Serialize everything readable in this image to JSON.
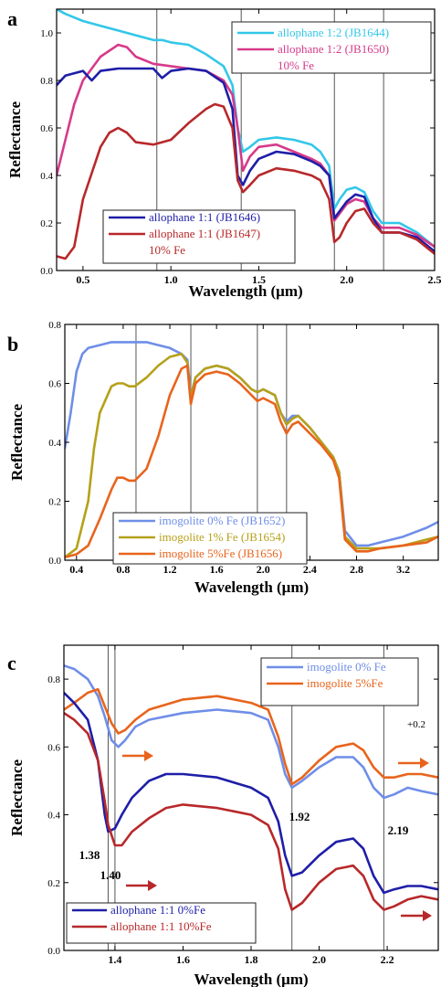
{
  "chart_data": [
    {
      "type": "line",
      "panel_label": "a",
      "xlabel": "Wavelength (μm)",
      "ylabel": "Reflectance",
      "xlim": [
        0.35,
        2.5
      ],
      "ylim": [
        0.0,
        1.1
      ],
      "xticks": [
        "0.5",
        "1.0",
        "1.5",
        "2.0",
        "2.5"
      ],
      "yticks": [
        "0.0",
        "0.2",
        "0.4",
        "0.6",
        "0.8",
        "1.0"
      ],
      "vlines": [
        0.92,
        1.4,
        1.93,
        2.21
      ],
      "grid": false,
      "legends": [
        {
          "placement": "top-right",
          "entries": [
            {
              "text": "allophane 1:2 (JB1644)",
              "color": "#33c7e8"
            },
            {
              "text": "allophane 1:2 (JB1650)",
              "color": "#d63a8a"
            },
            {
              "text": "10% Fe",
              "color": "#d63a8a"
            }
          ]
        },
        {
          "placement": "bottom-center",
          "entries": [
            {
              "text": "allophane 1:1 (JB1646)",
              "color": "#1e1ea8"
            },
            {
              "text": "allophane 1:1 (JB1647)",
              "color": "#b8282a"
            },
            {
              "text": "10% Fe",
              "color": "#b8282a"
            }
          ]
        }
      ],
      "series": [
        {
          "color": "#33c7e8",
          "x": [
            0.35,
            0.4,
            0.5,
            0.6,
            0.7,
            0.8,
            0.9,
            0.95,
            1.0,
            1.1,
            1.2,
            1.3,
            1.35,
            1.38,
            1.41,
            1.45,
            1.5,
            1.6,
            1.7,
            1.8,
            1.85,
            1.9,
            1.93,
            1.96,
            2.0,
            2.05,
            2.1,
            2.15,
            2.2,
            2.3,
            2.4,
            2.5
          ],
          "y": [
            1.1,
            1.08,
            1.05,
            1.03,
            1.01,
            0.99,
            0.97,
            0.97,
            0.96,
            0.95,
            0.91,
            0.86,
            0.78,
            0.6,
            0.5,
            0.52,
            0.55,
            0.56,
            0.55,
            0.53,
            0.5,
            0.44,
            0.26,
            0.3,
            0.34,
            0.35,
            0.33,
            0.25,
            0.2,
            0.2,
            0.16,
            0.1
          ]
        },
        {
          "color": "#d63a8a",
          "x": [
            0.35,
            0.4,
            0.45,
            0.5,
            0.6,
            0.7,
            0.75,
            0.8,
            0.9,
            1.0,
            1.1,
            1.2,
            1.3,
            1.35,
            1.38,
            1.41,
            1.45,
            1.5,
            1.6,
            1.7,
            1.8,
            1.85,
            1.9,
            1.93,
            1.96,
            2.0,
            2.05,
            2.1,
            2.15,
            2.2,
            2.3,
            2.4,
            2.5
          ],
          "y": [
            0.4,
            0.55,
            0.7,
            0.8,
            0.9,
            0.95,
            0.94,
            0.9,
            0.87,
            0.86,
            0.85,
            0.84,
            0.8,
            0.74,
            0.6,
            0.42,
            0.48,
            0.52,
            0.53,
            0.5,
            0.47,
            0.45,
            0.4,
            0.21,
            0.24,
            0.28,
            0.3,
            0.29,
            0.22,
            0.18,
            0.18,
            0.15,
            0.1
          ]
        },
        {
          "color": "#1e1ea8",
          "x": [
            0.35,
            0.4,
            0.5,
            0.55,
            0.6,
            0.7,
            0.8,
            0.9,
            0.95,
            1.0,
            1.1,
            1.2,
            1.3,
            1.35,
            1.38,
            1.41,
            1.45,
            1.5,
            1.6,
            1.7,
            1.8,
            1.85,
            1.9,
            1.93,
            1.96,
            2.0,
            2.05,
            2.1,
            2.15,
            2.2,
            2.3,
            2.4,
            2.5
          ],
          "y": [
            0.78,
            0.82,
            0.84,
            0.8,
            0.84,
            0.85,
            0.85,
            0.85,
            0.81,
            0.84,
            0.85,
            0.84,
            0.79,
            0.68,
            0.4,
            0.36,
            0.42,
            0.47,
            0.5,
            0.49,
            0.46,
            0.44,
            0.4,
            0.22,
            0.25,
            0.29,
            0.32,
            0.31,
            0.22,
            0.16,
            0.16,
            0.14,
            0.08
          ]
        },
        {
          "color": "#b8282a",
          "x": [
            0.35,
            0.4,
            0.45,
            0.5,
            0.6,
            0.65,
            0.7,
            0.75,
            0.8,
            0.9,
            1.0,
            1.1,
            1.2,
            1.25,
            1.3,
            1.35,
            1.38,
            1.41,
            1.45,
            1.5,
            1.6,
            1.7,
            1.8,
            1.85,
            1.9,
            1.93,
            1.96,
            2.0,
            2.05,
            2.1,
            2.15,
            2.2,
            2.3,
            2.4,
            2.5
          ],
          "y": [
            0.06,
            0.05,
            0.1,
            0.3,
            0.52,
            0.58,
            0.6,
            0.58,
            0.54,
            0.53,
            0.55,
            0.62,
            0.68,
            0.7,
            0.69,
            0.6,
            0.38,
            0.33,
            0.36,
            0.4,
            0.43,
            0.42,
            0.4,
            0.38,
            0.3,
            0.12,
            0.14,
            0.2,
            0.25,
            0.26,
            0.2,
            0.16,
            0.16,
            0.13,
            0.07
          ]
        }
      ]
    },
    {
      "type": "line",
      "panel_label": "b",
      "xlabel": "Wavelength (μm)",
      "ylabel": "Reflectance",
      "xlim": [
        0.3,
        3.5
      ],
      "ylim": [
        0.0,
        0.8
      ],
      "xticks": [
        "0.4",
        "0.8",
        "1.2",
        "1.6",
        "2.0",
        "2.4",
        "2.8",
        "3.2"
      ],
      "yticks": [
        "0.0",
        "0.2",
        "0.4",
        "0.6",
        "0.8"
      ],
      "vlines": [
        0.91,
        1.38,
        1.95,
        2.2
      ],
      "grid": false,
      "legends": [
        {
          "placement": "bottom-center",
          "entries": [
            {
              "text": "imogolite 0% Fe (JB1652)",
              "color": "#6f8ee8"
            },
            {
              "text": "imogolite 1% Fe (JB1654)",
              "color": "#b5a11a"
            },
            {
              "text": "imogolite 5%Fe (JB1656)",
              "color": "#e8641c"
            }
          ]
        }
      ],
      "series": [
        {
          "color": "#6f8ee8",
          "x": [
            0.3,
            0.35,
            0.4,
            0.45,
            0.5,
            0.6,
            0.7,
            0.8,
            0.9,
            1.0,
            1.1,
            1.2,
            1.3,
            1.35,
            1.38,
            1.42,
            1.5,
            1.6,
            1.7,
            1.8,
            1.9,
            1.95,
            2.0,
            2.1,
            2.15,
            2.2,
            2.25,
            2.3,
            2.4,
            2.5,
            2.6,
            2.65,
            2.7,
            2.8,
            2.9,
            3.0,
            3.2,
            3.4,
            3.5
          ],
          "y": [
            0.38,
            0.5,
            0.64,
            0.7,
            0.72,
            0.73,
            0.74,
            0.74,
            0.74,
            0.74,
            0.73,
            0.72,
            0.7,
            0.68,
            0.56,
            0.62,
            0.65,
            0.66,
            0.65,
            0.62,
            0.58,
            0.57,
            0.58,
            0.56,
            0.5,
            0.47,
            0.49,
            0.49,
            0.45,
            0.4,
            0.35,
            0.3,
            0.1,
            0.05,
            0.05,
            0.06,
            0.08,
            0.11,
            0.13
          ]
        },
        {
          "color": "#b5a11a",
          "x": [
            0.3,
            0.4,
            0.5,
            0.55,
            0.6,
            0.7,
            0.75,
            0.8,
            0.85,
            0.9,
            1.0,
            1.1,
            1.2,
            1.3,
            1.35,
            1.38,
            1.42,
            1.5,
            1.6,
            1.7,
            1.8,
            1.9,
            1.95,
            2.0,
            2.1,
            2.15,
            2.2,
            2.25,
            2.3,
            2.4,
            2.5,
            2.6,
            2.65,
            2.7,
            2.8,
            2.9,
            3.0,
            3.2,
            3.4,
            3.5
          ],
          "y": [
            0.01,
            0.04,
            0.2,
            0.38,
            0.5,
            0.59,
            0.6,
            0.6,
            0.59,
            0.59,
            0.62,
            0.66,
            0.69,
            0.7,
            0.67,
            0.55,
            0.62,
            0.65,
            0.66,
            0.65,
            0.62,
            0.58,
            0.57,
            0.58,
            0.56,
            0.5,
            0.46,
            0.48,
            0.49,
            0.45,
            0.4,
            0.35,
            0.3,
            0.08,
            0.04,
            0.04,
            0.04,
            0.05,
            0.07,
            0.08
          ]
        },
        {
          "color": "#e8641c",
          "x": [
            0.3,
            0.4,
            0.5,
            0.6,
            0.7,
            0.75,
            0.8,
            0.85,
            0.9,
            1.0,
            1.1,
            1.2,
            1.3,
            1.35,
            1.38,
            1.42,
            1.5,
            1.6,
            1.7,
            1.8,
            1.9,
            1.95,
            2.0,
            2.1,
            2.15,
            2.2,
            2.25,
            2.3,
            2.4,
            2.5,
            2.6,
            2.65,
            2.7,
            2.8,
            2.9,
            3.0,
            3.2,
            3.4,
            3.5
          ],
          "y": [
            0.01,
            0.02,
            0.05,
            0.14,
            0.24,
            0.28,
            0.28,
            0.27,
            0.27,
            0.31,
            0.42,
            0.56,
            0.65,
            0.66,
            0.53,
            0.6,
            0.63,
            0.64,
            0.63,
            0.6,
            0.56,
            0.54,
            0.55,
            0.53,
            0.47,
            0.43,
            0.46,
            0.47,
            0.43,
            0.39,
            0.34,
            0.28,
            0.07,
            0.03,
            0.03,
            0.04,
            0.05,
            0.06,
            0.08
          ]
        }
      ]
    },
    {
      "type": "line",
      "panel_label": "c",
      "xlabel": "Wavelength (μm)",
      "ylabel": "Reflectance",
      "xlim": [
        1.25,
        2.35
      ],
      "ylim": [
        0.0,
        0.9
      ],
      "xticks": [
        "1.4",
        "1.6",
        "1.8",
        "2.0",
        "2.2"
      ],
      "yticks": [
        "0.0",
        "0.2",
        "0.4",
        "0.6",
        "0.8"
      ],
      "vlines": [
        1.38,
        1.4,
        1.92,
        2.19
      ],
      "grid": false,
      "annotations": [
        "1.38",
        "1.40",
        "1.92",
        "2.19",
        "+0.2"
      ],
      "arrows": [
        {
          "color": "#e8641c",
          "near": "1.40"
        },
        {
          "color": "#b8282a",
          "near": "1.40"
        },
        {
          "color": "#e8641c",
          "near": "2.19"
        },
        {
          "color": "#b8282a",
          "near": "2.19"
        }
      ],
      "legends": [
        {
          "placement": "top-right",
          "entries": [
            {
              "text": "imogolite 0% Fe",
              "color": "#6f8ee8"
            },
            {
              "text": "imogolite 5%Fe",
              "color": "#e8641c"
            }
          ]
        },
        {
          "placement": "bottom-left",
          "entries": [
            {
              "text": "allophane 1:1 0%Fe",
              "color": "#1e1ea8"
            },
            {
              "text": "allophane 1:1 10%Fe",
              "color": "#b8282a"
            }
          ]
        }
      ],
      "series": [
        {
          "color": "#6f8ee8",
          "x": [
            1.25,
            1.28,
            1.32,
            1.35,
            1.37,
            1.39,
            1.41,
            1.43,
            1.46,
            1.5,
            1.6,
            1.7,
            1.8,
            1.85,
            1.88,
            1.9,
            1.92,
            1.95,
            2.0,
            2.05,
            2.1,
            2.13,
            2.16,
            2.19,
            2.22,
            2.26,
            2.3,
            2.35
          ],
          "y": [
            0.84,
            0.83,
            0.8,
            0.75,
            0.69,
            0.62,
            0.6,
            0.62,
            0.66,
            0.68,
            0.7,
            0.71,
            0.7,
            0.68,
            0.6,
            0.52,
            0.48,
            0.5,
            0.54,
            0.57,
            0.57,
            0.54,
            0.48,
            0.45,
            0.46,
            0.48,
            0.47,
            0.46
          ]
        },
        {
          "color": "#e8641c",
          "x": [
            1.25,
            1.28,
            1.32,
            1.35,
            1.37,
            1.39,
            1.41,
            1.43,
            1.46,
            1.5,
            1.6,
            1.7,
            1.8,
            1.85,
            1.88,
            1.9,
            1.92,
            1.95,
            2.0,
            2.05,
            2.1,
            2.13,
            2.16,
            2.19,
            2.22,
            2.26,
            2.3,
            2.35
          ],
          "y": [
            0.71,
            0.73,
            0.76,
            0.77,
            0.72,
            0.67,
            0.64,
            0.65,
            0.68,
            0.71,
            0.74,
            0.75,
            0.73,
            0.71,
            0.63,
            0.55,
            0.49,
            0.51,
            0.56,
            0.6,
            0.61,
            0.59,
            0.54,
            0.51,
            0.51,
            0.52,
            0.52,
            0.51
          ]
        },
        {
          "color": "#1e1ea8",
          "x": [
            1.25,
            1.28,
            1.32,
            1.35,
            1.37,
            1.38,
            1.4,
            1.42,
            1.45,
            1.5,
            1.55,
            1.6,
            1.7,
            1.8,
            1.85,
            1.88,
            1.9,
            1.92,
            1.95,
            2.0,
            2.05,
            2.1,
            2.13,
            2.16,
            2.19,
            2.22,
            2.26,
            2.3,
            2.35
          ],
          "y": [
            0.76,
            0.73,
            0.68,
            0.56,
            0.4,
            0.35,
            0.36,
            0.4,
            0.45,
            0.5,
            0.52,
            0.52,
            0.51,
            0.48,
            0.45,
            0.38,
            0.28,
            0.22,
            0.23,
            0.28,
            0.32,
            0.33,
            0.3,
            0.22,
            0.17,
            0.18,
            0.19,
            0.19,
            0.18
          ]
        },
        {
          "color": "#b8282a",
          "x": [
            1.25,
            1.28,
            1.32,
            1.35,
            1.37,
            1.38,
            1.4,
            1.42,
            1.45,
            1.5,
            1.55,
            1.6,
            1.7,
            1.8,
            1.85,
            1.88,
            1.9,
            1.92,
            1.95,
            2.0,
            2.05,
            2.1,
            2.13,
            2.16,
            2.19,
            2.22,
            2.26,
            2.3,
            2.35
          ],
          "y": [
            0.7,
            0.68,
            0.64,
            0.56,
            0.44,
            0.37,
            0.31,
            0.31,
            0.35,
            0.39,
            0.42,
            0.43,
            0.42,
            0.4,
            0.37,
            0.3,
            0.18,
            0.12,
            0.14,
            0.2,
            0.24,
            0.25,
            0.22,
            0.15,
            0.12,
            0.13,
            0.15,
            0.16,
            0.15
          ]
        }
      ]
    }
  ]
}
